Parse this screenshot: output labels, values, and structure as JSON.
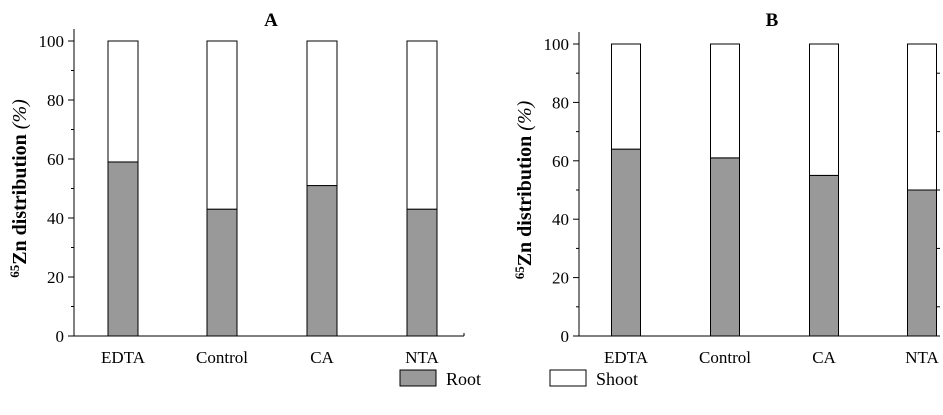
{
  "colors": {
    "root": "#999999",
    "shoot": "#ffffff",
    "axis": "#000000"
  },
  "legend": {
    "root_label": "Root",
    "shoot_label": "Shoot"
  },
  "chart_data": [
    {
      "type": "bar",
      "stacked": true,
      "title": "A",
      "ylabel": {
        "sup": "65",
        "main": "Zn distribution",
        "unit": "(%)"
      },
      "categories": [
        "EDTA",
        "Control",
        "CA",
        "NTA"
      ],
      "series": [
        {
          "name": "Root",
          "values": [
            59,
            43,
            51,
            43
          ]
        },
        {
          "name": "Shoot",
          "values": [
            41,
            57,
            49,
            57
          ]
        }
      ],
      "ylim": [
        0,
        100
      ],
      "yticks": [
        0,
        20,
        40,
        60,
        80,
        100
      ],
      "grid": false,
      "legend_position": "bottom"
    },
    {
      "type": "bar",
      "stacked": true,
      "title": "B",
      "ylabel": {
        "sup": "65",
        "main": "Zn distribution",
        "unit": "(%)"
      },
      "categories": [
        "EDTA",
        "Control",
        "CA",
        "NTA"
      ],
      "series": [
        {
          "name": "Root",
          "values": [
            64,
            61,
            55,
            50
          ]
        },
        {
          "name": "Shoot",
          "values": [
            36,
            39,
            45,
            50
          ]
        }
      ],
      "ylim": [
        0,
        100
      ],
      "yticks": [
        0,
        20,
        40,
        60,
        80,
        100
      ],
      "grid": false,
      "legend_position": "bottom"
    }
  ]
}
